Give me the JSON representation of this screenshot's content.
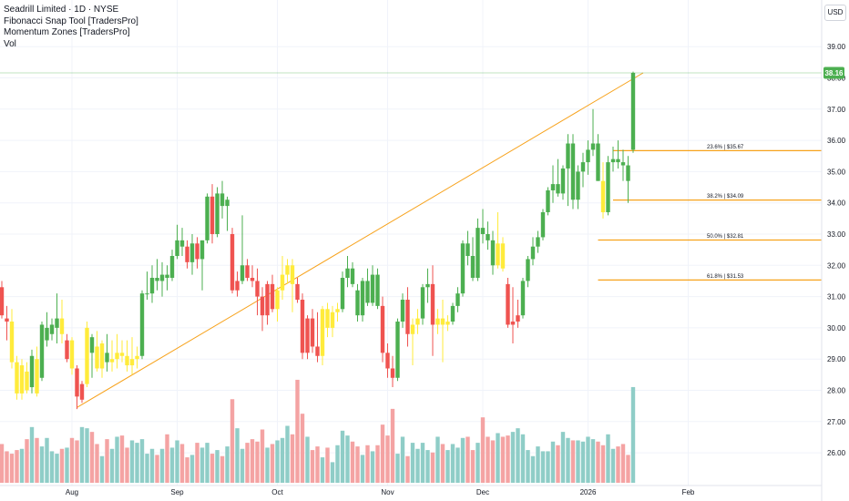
{
  "legend": {
    "symbol": "Seadrill Limited · 1D · NYSE",
    "indicators": [
      "Fibonacci Snap Tool [TradersPro]",
      "Momentum Zones [TradersPro]",
      "Vol"
    ]
  },
  "currency": "USD",
  "colors": {
    "up": "#4caf50",
    "down": "#ef5350",
    "neutral": "#ffeb3b",
    "vol_up": "#8fcdc7",
    "vol_down": "#f4a3a3",
    "trend": "#f7a21b",
    "fib": "#f7a21b",
    "last_price": "#4caf50"
  },
  "chart_data": {
    "type": "candlestick",
    "y_ticks": [
      "26.00",
      "27.00",
      "28.00",
      "29.00",
      "30.00",
      "31.00",
      "32.00",
      "33.00",
      "34.00",
      "35.00",
      "36.00",
      "37.00",
      "38.00",
      "39.00"
    ],
    "x_labels": [
      {
        "label": "Aug",
        "bar": 14
      },
      {
        "label": "Sep",
        "bar": 35
      },
      {
        "label": "Oct",
        "bar": 55
      },
      {
        "label": "Nov",
        "bar": 77
      },
      {
        "label": "Dec",
        "bar": 96
      },
      {
        "label": "2026",
        "bar": 117
      },
      {
        "label": "Feb",
        "bar": 137
      }
    ],
    "last_price": "38.16",
    "fib_levels": [
      {
        "label": "23.6% | $35.67",
        "price": 35.67,
        "start_bar": 122
      },
      {
        "label": "38.2% | $34.09",
        "price": 34.09,
        "start_bar": 122
      },
      {
        "label": "50.0% | $32.81",
        "price": 32.81,
        "start_bar": 119
      },
      {
        "label": "61.8% | $31.53",
        "price": 31.53,
        "start_bar": 119
      }
    ],
    "trend_line": {
      "from_bar": 15,
      "from_price": 27.45,
      "to_bar": 128,
      "to_price": 38.16
    },
    "candles": [
      [
        31.3,
        31.5,
        30.3,
        30.4,
        "r",
        0.32
      ],
      [
        30.3,
        30.7,
        29.6,
        30.2,
        "r",
        0.26
      ],
      [
        30.2,
        30.6,
        28.7,
        28.9,
        "y",
        0.24
      ],
      [
        28.9,
        29.1,
        27.7,
        27.9,
        "y",
        0.27
      ],
      [
        27.9,
        29.0,
        27.7,
        28.8,
        "y",
        0.28
      ],
      [
        28.6,
        28.9,
        27.9,
        28.0,
        "y",
        0.36
      ],
      [
        28.1,
        29.3,
        27.9,
        29.1,
        "g",
        0.46
      ],
      [
        29.0,
        29.4,
        27.8,
        27.9,
        "y",
        0.37
      ],
      [
        28.4,
        30.2,
        28.3,
        30.1,
        "g",
        0.3
      ],
      [
        29.6,
        30.5,
        29.4,
        30.0,
        "g",
        0.37
      ],
      [
        29.8,
        30.3,
        29.6,
        30.1,
        "g",
        0.26
      ],
      [
        30.0,
        31.1,
        29.5,
        30.3,
        "g",
        0.24
      ],
      [
        30.3,
        30.9,
        29.5,
        29.8,
        "y",
        0.28
      ],
      [
        29.0,
        29.8,
        28.9,
        29.6,
        "r",
        0.29
      ],
      [
        29.6,
        29.7,
        28.5,
        28.7,
        "y",
        0.37
      ],
      [
        28.7,
        28.8,
        27.4,
        27.8,
        "r",
        0.35
      ],
      [
        27.7,
        28.3,
        27.6,
        28.2,
        "r",
        0.46
      ],
      [
        28.2,
        30.2,
        28.1,
        30.0,
        "y",
        0.45
      ],
      [
        29.7,
        29.8,
        28.4,
        29.2,
        "g",
        0.42
      ],
      [
        29.4,
        29.9,
        28.6,
        28.7,
        "y",
        0.32
      ],
      [
        28.7,
        29.6,
        28.4,
        29.5,
        "y",
        0.22
      ],
      [
        29.2,
        29.8,
        28.6,
        28.9,
        "g",
        0.36
      ],
      [
        28.9,
        29.6,
        28.6,
        29.0,
        "y",
        0.28
      ],
      [
        29.0,
        29.8,
        28.7,
        29.2,
        "y",
        0.38
      ],
      [
        29.2,
        29.6,
        28.9,
        29.1,
        "y",
        0.39
      ],
      [
        29.1,
        29.6,
        28.6,
        28.8,
        "y",
        0.29
      ],
      [
        28.8,
        29.7,
        28.5,
        29.0,
        "y",
        0.35
      ],
      [
        29.0,
        29.4,
        28.7,
        29.1,
        "y",
        0.33
      ],
      [
        29.1,
        31.2,
        29.0,
        31.1,
        "g",
        0.36
      ],
      [
        31.1,
        31.8,
        30.9,
        31.1,
        "g",
        0.24
      ],
      [
        31.1,
        32.0,
        30.8,
        31.6,
        "g",
        0.28
      ],
      [
        31.6,
        32.2,
        31.2,
        31.5,
        "g",
        0.23
      ],
      [
        31.5,
        32.1,
        31.0,
        31.7,
        "g",
        0.28
      ],
      [
        31.7,
        32.0,
        31.2,
        31.6,
        "g",
        0.4
      ],
      [
        31.6,
        32.5,
        31.5,
        32.3,
        "g",
        0.29
      ],
      [
        32.3,
        33.3,
        32.2,
        32.8,
        "g",
        0.35
      ],
      [
        32.8,
        33.2,
        32.3,
        32.6,
        "g",
        0.32
      ],
      [
        32.6,
        32.8,
        31.9,
        32.1,
        "r",
        0.21
      ],
      [
        32.1,
        33.0,
        31.7,
        32.7,
        "g",
        0.23
      ],
      [
        32.7,
        32.9,
        31.9,
        32.2,
        "r",
        0.33
      ],
      [
        32.2,
        32.8,
        31.2,
        32.8,
        "g",
        0.29
      ],
      [
        32.8,
        34.3,
        32.7,
        34.2,
        "g",
        0.33
      ],
      [
        34.2,
        34.6,
        32.7,
        33.0,
        "r",
        0.24
      ],
      [
        33.0,
        34.5,
        32.9,
        34.3,
        "g",
        0.27
      ],
      [
        34.3,
        34.7,
        33.5,
        33.9,
        "g",
        0.22
      ],
      [
        33.9,
        34.2,
        33.1,
        34.1,
        "g",
        0.3
      ],
      [
        33.0,
        33.2,
        31.1,
        31.2,
        "r",
        0.69
      ],
      [
        31.2,
        31.8,
        31.0,
        31.5,
        "r",
        0.45
      ],
      [
        31.5,
        33.6,
        31.4,
        32.0,
        "g",
        0.28
      ],
      [
        32.0,
        32.2,
        31.5,
        31.6,
        "r",
        0.33
      ],
      [
        31.6,
        32.0,
        31.3,
        31.5,
        "r",
        0.36
      ],
      [
        31.5,
        31.9,
        30.4,
        31.0,
        "r",
        0.34
      ],
      [
        31.0,
        31.3,
        29.9,
        30.4,
        "r",
        0.44
      ],
      [
        30.4,
        31.5,
        30.1,
        31.4,
        "r",
        0.29
      ],
      [
        31.4,
        31.7,
        30.5,
        30.6,
        "r",
        0.32
      ],
      [
        30.6,
        31.3,
        30.2,
        31.2,
        "y",
        0.35
      ],
      [
        31.2,
        32.3,
        30.9,
        31.7,
        "y",
        0.37
      ],
      [
        31.7,
        32.2,
        31.4,
        32.0,
        "y",
        0.47
      ],
      [
        32.0,
        32.2,
        30.5,
        31.4,
        "y",
        0.4
      ],
      [
        31.4,
        31.6,
        30.8,
        30.9,
        "r",
        0.85
      ],
      [
        30.9,
        31.1,
        29.0,
        29.2,
        "r",
        0.57
      ],
      [
        29.2,
        30.4,
        29.0,
        30.3,
        "r",
        0.38
      ],
      [
        30.3,
        30.6,
        29.2,
        29.4,
        "r",
        0.27
      ],
      [
        29.4,
        30.5,
        28.9,
        29.1,
        "r",
        0.3
      ],
      [
        29.1,
        30.7,
        28.8,
        30.6,
        "y",
        0.21
      ],
      [
        30.6,
        30.8,
        29.7,
        30.0,
        "y",
        0.29
      ],
      [
        30.0,
        30.7,
        29.7,
        30.5,
        "y",
        0.17
      ],
      [
        30.5,
        30.8,
        30.2,
        30.6,
        "y",
        0.31
      ],
      [
        30.6,
        31.8,
        30.5,
        31.6,
        "g",
        0.43
      ],
      [
        31.6,
        32.3,
        31.3,
        31.9,
        "g",
        0.39
      ],
      [
        31.9,
        32.1,
        31.3,
        31.4,
        "g",
        0.34
      ],
      [
        31.2,
        31.4,
        30.2,
        30.4,
        "g",
        0.3
      ],
      [
        30.4,
        31.6,
        30.2,
        31.5,
        "g",
        0.23
      ],
      [
        31.5,
        31.9,
        30.7,
        30.8,
        "g",
        0.31
      ],
      [
        30.8,
        32.0,
        30.7,
        31.7,
        "g",
        0.26
      ],
      [
        31.7,
        31.9,
        30.6,
        30.7,
        "g",
        0.31
      ],
      [
        30.7,
        31.0,
        28.9,
        29.2,
        "r",
        0.48
      ],
      [
        29.2,
        29.5,
        28.4,
        28.7,
        "r",
        0.39
      ],
      [
        28.7,
        29.1,
        28.1,
        28.4,
        "r",
        0.61
      ],
      [
        28.4,
        30.3,
        28.3,
        30.2,
        "g",
        0.24
      ],
      [
        30.2,
        31.1,
        30.0,
        30.9,
        "g",
        0.38
      ],
      [
        30.9,
        31.3,
        29.4,
        29.8,
        "r",
        0.22
      ],
      [
        29.8,
        30.3,
        28.8,
        30.1,
        "y",
        0.33
      ],
      [
        30.1,
        30.6,
        29.8,
        30.3,
        "y",
        0.28
      ],
      [
        30.3,
        31.4,
        30.1,
        31.3,
        "g",
        0.33
      ],
      [
        31.3,
        31.9,
        30.8,
        31.4,
        "g",
        0.27
      ],
      [
        31.4,
        32.0,
        29.1,
        30.1,
        "r",
        0.25
      ],
      [
        30.1,
        30.6,
        29.8,
        30.3,
        "y",
        0.38
      ],
      [
        30.3,
        30.9,
        28.9,
        30.1,
        "y",
        0.32
      ],
      [
        30.1,
        30.4,
        29.9,
        30.2,
        "y",
        0.27
      ],
      [
        30.2,
        30.8,
        30.1,
        30.7,
        "g",
        0.32
      ],
      [
        30.7,
        31.3,
        30.5,
        31.1,
        "g",
        0.29
      ],
      [
        31.1,
        32.8,
        31.0,
        32.7,
        "g",
        0.37
      ],
      [
        32.7,
        33.1,
        32.0,
        32.3,
        "g",
        0.38
      ],
      [
        32.3,
        32.9,
        31.5,
        31.6,
        "g",
        0.27
      ],
      [
        31.6,
        33.5,
        31.5,
        33.2,
        "g",
        0.33
      ],
      [
        33.2,
        33.8,
        32.7,
        33.0,
        "g",
        0.54
      ],
      [
        33.0,
        33.4,
        32.5,
        32.8,
        "g",
        0.38
      ],
      [
        32.8,
        33.1,
        31.7,
        32.0,
        "g",
        0.35
      ],
      [
        32.0,
        33.7,
        31.9,
        32.7,
        "y",
        0.41
      ],
      [
        32.7,
        32.9,
        31.8,
        31.9,
        "y",
        0.38
      ],
      [
        31.4,
        31.6,
        30.0,
        30.1,
        "r",
        0.39
      ],
      [
        30.1,
        31.3,
        29.5,
        30.2,
        "r",
        0.42
      ],
      [
        30.2,
        30.9,
        30.0,
        30.4,
        "r",
        0.45
      ],
      [
        30.4,
        31.6,
        30.3,
        31.5,
        "g",
        0.4
      ],
      [
        31.5,
        32.3,
        31.3,
        32.2,
        "g",
        0.27
      ],
      [
        32.2,
        32.9,
        32.0,
        32.6,
        "g",
        0.22
      ],
      [
        32.6,
        33.1,
        32.4,
        32.9,
        "g",
        0.3
      ],
      [
        32.9,
        33.8,
        32.8,
        33.7,
        "g",
        0.26
      ],
      [
        33.7,
        34.5,
        33.6,
        34.4,
        "g",
        0.26
      ],
      [
        34.4,
        35.2,
        34.0,
        34.6,
        "g",
        0.34
      ],
      [
        34.6,
        35.4,
        34.2,
        34.3,
        "g",
        0.31
      ],
      [
        34.3,
        35.2,
        34.1,
        35.1,
        "g",
        0.42
      ],
      [
        35.1,
        36.2,
        33.9,
        35.9,
        "g",
        0.37
      ],
      [
        35.9,
        36.2,
        33.8,
        34.1,
        "g",
        0.35
      ],
      [
        34.1,
        35.2,
        33.8,
        35.0,
        "g",
        0.35
      ],
      [
        35.0,
        35.6,
        34.5,
        35.3,
        "g",
        0.34
      ],
      [
        35.3,
        36.0,
        34.9,
        35.7,
        "g",
        0.38
      ],
      [
        35.7,
        37.0,
        35.5,
        35.9,
        "g",
        0.36
      ],
      [
        35.9,
        36.2,
        34.7,
        34.7,
        "g",
        0.34
      ],
      [
        34.7,
        35.3,
        33.5,
        33.7,
        "y",
        0.31
      ],
      [
        33.7,
        35.5,
        33.6,
        35.3,
        "g",
        0.4
      ],
      [
        35.3,
        35.8,
        35.0,
        35.4,
        "g",
        0.28
      ],
      [
        35.4,
        36.0,
        35.1,
        35.3,
        "g",
        0.3
      ],
      [
        35.3,
        35.7,
        34.7,
        35.2,
        "g",
        0.32
      ],
      [
        35.2,
        35.5,
        34.0,
        34.7,
        "g",
        0.23
      ],
      [
        35.7,
        38.2,
        35.6,
        38.16,
        "g",
        0.79
      ]
    ]
  }
}
